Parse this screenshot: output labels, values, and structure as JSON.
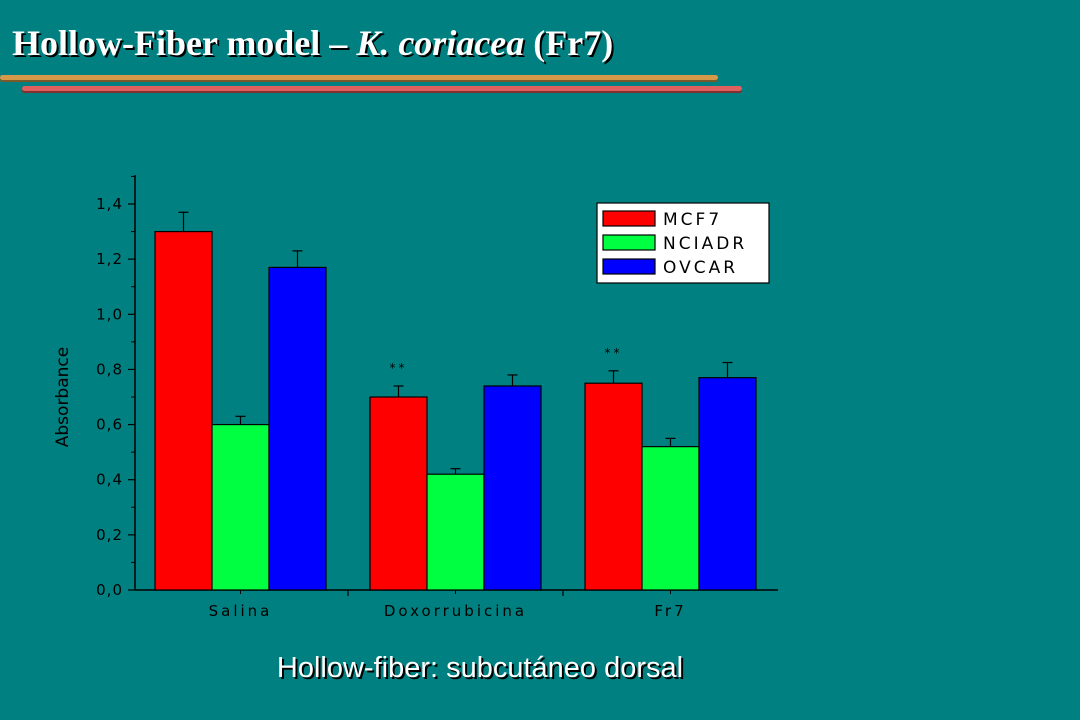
{
  "header": {
    "title_part1": "Hollow-Fiber model – ",
    "title_italic": "K. coriacea",
    "title_part2": " (Fr7)"
  },
  "chart_data": {
    "type": "bar",
    "ylabel": "Absorbance",
    "ylim": [
      0,
      1.5
    ],
    "yticks": [
      "0,0",
      "0,2",
      "0,4",
      "0,6",
      "0,8",
      "1,0",
      "1,2",
      "1,4"
    ],
    "yticks_values": [
      0,
      0.2,
      0.4,
      0.6,
      0.8,
      1.0,
      1.2,
      1.4
    ],
    "categories": [
      "Salina",
      "Doxorrubicina",
      "Fr7"
    ],
    "series": [
      {
        "name": "MCF7",
        "color": "#ff0000",
        "values": [
          1.3,
          0.7,
          0.75
        ],
        "errors": [
          0.07,
          0.04,
          0.045
        ]
      },
      {
        "name": "NCIADR",
        "color": "#00ff40",
        "values": [
          0.6,
          0.42,
          0.52
        ],
        "errors": [
          0.03,
          0.02,
          0.03
        ]
      },
      {
        "name": "OVCAR",
        "color": "#0000ff",
        "values": [
          1.17,
          0.74,
          0.77
        ],
        "errors": [
          0.06,
          0.04,
          0.055
        ]
      }
    ],
    "annotations": [
      {
        "text": "**",
        "category": "Doxorrubicina",
        "series": "MCF7"
      },
      {
        "text": "**",
        "category": "Fr7",
        "series": "MCF7"
      }
    ],
    "legend_position": "top-right",
    "grid": false
  },
  "footer": {
    "subtitle": "Hollow-fiber: subcutáneo dorsal"
  }
}
